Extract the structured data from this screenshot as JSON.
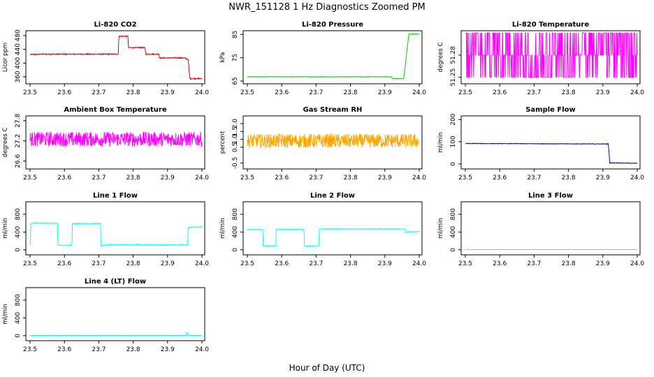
{
  "figure": {
    "title": "NWR_151128  1 Hz Diagnostics Zoomed PM",
    "xlabel": "Hour of Day (UTC)"
  },
  "chart_data": [
    {
      "type": "line",
      "title": "Li-820 CO2",
      "ylabel": "Licor ppm",
      "xlim": [
        23.5,
        24.0
      ],
      "ylim": [
        348,
        490
      ],
      "xticks": [
        "23.5",
        "23.6",
        "23.7",
        "23.8",
        "23.9",
        "24.0"
      ],
      "yticks": [
        360,
        400,
        440,
        480
      ],
      "color": "#dd0000",
      "series": [
        {
          "x": [
            23.5,
            23.52,
            23.53,
            23.757,
            23.758,
            23.785,
            23.786,
            23.835,
            23.836,
            23.875,
            23.876,
            23.95,
            23.96,
            23.965,
            24.0
          ],
          "values": [
            425,
            425,
            426,
            426,
            478,
            478,
            445,
            445,
            426,
            426,
            415,
            415,
            410,
            355,
            355
          ]
        }
      ],
      "noise": 1.5
    },
    {
      "type": "line",
      "title": "Li-820 Pressure",
      "ylabel": "kPa",
      "xlim": [
        23.5,
        24.0
      ],
      "ylim": [
        65,
        86
      ],
      "xticks": [
        "23.5",
        "23.6",
        "23.7",
        "23.8",
        "23.9",
        "24.0"
      ],
      "yticks": [
        65,
        75,
        85
      ],
      "color": "#00cc00",
      "series": [
        {
          "x": [
            23.5,
            23.92,
            23.921,
            23.955,
            23.97,
            23.975,
            24.0
          ],
          "values": [
            66.8,
            66.8,
            66.1,
            66.1,
            85.2,
            85.2,
            85.2
          ]
        }
      ],
      "noise": 0.1
    },
    {
      "type": "line",
      "title": "Li-820 Temperature",
      "ylabel": "degrees C",
      "xlim": [
        23.5,
        24.0
      ],
      "ylim": [
        51.245,
        51.311
      ],
      "xticks": [
        "23.5",
        "23.6",
        "23.7",
        "23.8",
        "23.9",
        "24.0"
      ],
      "yticks": [
        51.25,
        51.28
      ],
      "ytick_labels": [
        "51.25",
        "51.28"
      ],
      "color": "#ff00ff",
      "levels": [
        51.25,
        51.28,
        51.31
      ],
      "base_level": 51.28
    },
    {
      "type": "line",
      "title": "Ambient Box Temperature",
      "ylabel": "degrees C",
      "xlim": [
        23.5,
        24.0
      ],
      "ylim": [
        26.45,
        27.9
      ],
      "xticks": [
        "23.5",
        "23.6",
        "23.7",
        "23.8",
        "23.9",
        "24.0"
      ],
      "yticks": [
        26.6,
        27.2,
        27.8
      ],
      "ytick_labels": [
        "26.6",
        "27.2",
        "27.8"
      ],
      "color": "#ff00ff",
      "series": [
        {
          "x": [
            23.5,
            24.0
          ],
          "values": [
            27.25,
            27.25
          ]
        }
      ],
      "noise": 0.22
    },
    {
      "type": "line",
      "title": "Gas Stream RH",
      "ylabel": "percent",
      "xlim": [
        23.5,
        24.0
      ],
      "ylim": [
        -0.7,
        2.4
      ],
      "xticks": [
        "23.5",
        "23.6",
        "23.7",
        "23.8",
        "23.9",
        "24.0"
      ],
      "yticks": [
        -0.5,
        0.5,
        1.0,
        1.5,
        2.0
      ],
      "ytick_labels": [
        "-0.5",
        "0.5",
        "1.0",
        "1.5",
        "2.0"
      ],
      "color": "#ffa500",
      "series": [
        {
          "x": [
            23.5,
            24.0
          ],
          "values": [
            0.9,
            0.9
          ]
        }
      ],
      "noise": 0.45
    },
    {
      "type": "line",
      "title": "Sample Flow",
      "ylabel": "ml/min",
      "xlim": [
        23.5,
        24.0
      ],
      "ylim": [
        -10,
        210
      ],
      "xticks": [
        "23.5",
        "23.6",
        "23.7",
        "23.8",
        "23.9",
        "24.0"
      ],
      "yticks": [
        0,
        100,
        200
      ],
      "color": "#0000cc",
      "series": [
        {
          "x": [
            23.5,
            23.916,
            23.92,
            24.0
          ],
          "values": [
            92,
            90,
            5,
            3
          ]
        }
      ],
      "noise": 1.2
    },
    {
      "type": "line",
      "title": "Line 1 Flow",
      "ylabel": "ml/min",
      "xlim": [
        23.5,
        24.0
      ],
      "ylim": [
        -50,
        1050
      ],
      "xticks": [
        "23.5",
        "23.6",
        "23.7",
        "23.8",
        "23.9",
        "24.0"
      ],
      "yticks": [
        0,
        400,
        800
      ],
      "color": "#00ffff",
      "series": [
        {
          "x": [
            23.5,
            23.501,
            23.502,
            23.58,
            23.581,
            23.622,
            23.623,
            23.705,
            23.706,
            23.73,
            23.959,
            23.96,
            24.0
          ],
          "values": [
            110,
            110,
            600,
            600,
            100,
            100,
            590,
            590,
            95,
            115,
            110,
            500,
            520
          ]
        }
      ],
      "noise": 10
    },
    {
      "type": "line",
      "title": "Line 2 Flow",
      "ylabel": "ml/min",
      "xlim": [
        23.5,
        24.0
      ],
      "ylim": [
        -50,
        1050
      ],
      "xticks": [
        "23.5",
        "23.6",
        "23.7",
        "23.8",
        "23.9",
        "24.0"
      ],
      "yticks": [
        0,
        400,
        800
      ],
      "color": "#00ffff",
      "series": [
        {
          "x": [
            23.5,
            23.545,
            23.546,
            23.583,
            23.584,
            23.665,
            23.666,
            23.708,
            23.709,
            23.96,
            23.961,
            24.0
          ],
          "values": [
            455,
            455,
            90,
            90,
            460,
            460,
            90,
            90,
            470,
            470,
            400,
            410
          ]
        }
      ],
      "noise": 8
    },
    {
      "type": "line",
      "title": "Line 3 Flow",
      "ylabel": "ml/min",
      "xlim": [
        23.5,
        24.0
      ],
      "ylim": [
        -50,
        1050
      ],
      "xticks": [
        "23.5",
        "23.6",
        "23.7",
        "23.8",
        "23.9",
        "24.0"
      ],
      "yticks": [
        0,
        400,
        800
      ],
      "color": "#00ffff",
      "series": [
        {
          "x": [
            23.5,
            24.0
          ],
          "values": [
            5,
            5
          ]
        }
      ],
      "noise": 1
    },
    {
      "type": "line",
      "title": "Line 4 (LT) Flow",
      "ylabel": "ml/min",
      "xlim": [
        23.5,
        24.0
      ],
      "ylim": [
        -50,
        1050
      ],
      "xticks": [
        "23.5",
        "23.6",
        "23.7",
        "23.8",
        "23.9",
        "24.0"
      ],
      "yticks": [
        0,
        400,
        800
      ],
      "color": "#00ffff",
      "series": [
        {
          "x": [
            23.5,
            23.955,
            23.956,
            23.958,
            23.959,
            24.0
          ],
          "values": [
            5,
            5,
            70,
            70,
            5,
            5
          ]
        }
      ],
      "noise": 1
    }
  ]
}
